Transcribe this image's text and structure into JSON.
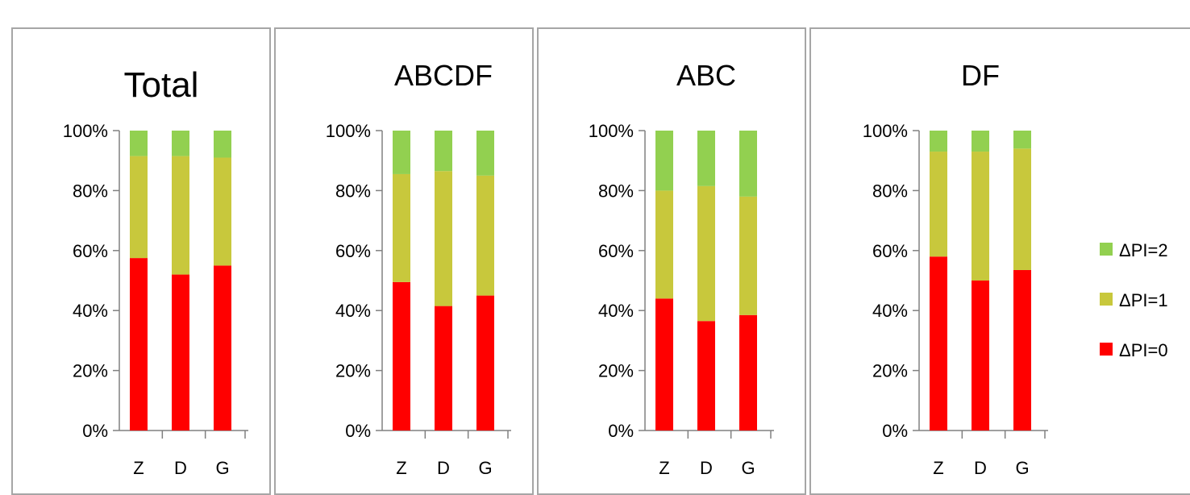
{
  "chart_data": [
    {
      "type": "bar",
      "stacked": true,
      "title": "Total",
      "categories": [
        "Z",
        "D",
        "G"
      ],
      "series": [
        {
          "name": "ΔPI=0",
          "values": [
            57.5,
            52,
            55
          ]
        },
        {
          "name": "ΔPI=1",
          "values": [
            34,
            39.5,
            36
          ]
        },
        {
          "name": "ΔPI=2",
          "values": [
            8.5,
            8.5,
            9
          ]
        }
      ],
      "yticks": [
        "0%",
        "20%",
        "40%",
        "60%",
        "80%",
        "100%"
      ],
      "ylim": [
        0,
        100
      ],
      "grid": false
    },
    {
      "type": "bar",
      "stacked": true,
      "title": "ABCDF",
      "categories": [
        "Z",
        "D",
        "G"
      ],
      "series": [
        {
          "name": "ΔPI=0",
          "values": [
            49.5,
            41.5,
            45
          ]
        },
        {
          "name": "ΔPI=1",
          "values": [
            36,
            45,
            40
          ]
        },
        {
          "name": "ΔPI=2",
          "values": [
            14.5,
            13.5,
            15
          ]
        }
      ],
      "yticks": [
        "0%",
        "20%",
        "40%",
        "60%",
        "80%",
        "100%"
      ],
      "ylim": [
        0,
        100
      ],
      "grid": false
    },
    {
      "type": "bar",
      "stacked": true,
      "title": "ABC",
      "categories": [
        "Z",
        "D",
        "G"
      ],
      "series": [
        {
          "name": "ΔPI=0",
          "values": [
            44,
            36.5,
            38.5
          ]
        },
        {
          "name": "ΔPI=1",
          "values": [
            36,
            45,
            39.5
          ]
        },
        {
          "name": "ΔPI=2",
          "values": [
            20,
            18.5,
            22
          ]
        }
      ],
      "yticks": [
        "0%",
        "20%",
        "40%",
        "60%",
        "80%",
        "100%"
      ],
      "ylim": [
        0,
        100
      ],
      "grid": false
    },
    {
      "type": "bar",
      "stacked": true,
      "title": "DF",
      "categories": [
        "Z",
        "D",
        "G"
      ],
      "series": [
        {
          "name": "ΔPI=0",
          "values": [
            58,
            50,
            53.5
          ]
        },
        {
          "name": "ΔPI=1",
          "values": [
            35,
            43,
            40.5
          ]
        },
        {
          "name": "ΔPI=2",
          "values": [
            7,
            7,
            6
          ]
        }
      ],
      "yticks": [
        "0%",
        "20%",
        "40%",
        "60%",
        "80%",
        "100%"
      ],
      "ylim": [
        0,
        100
      ],
      "grid": false
    }
  ],
  "legend": {
    "placement": "right",
    "items": [
      {
        "label": "ΔPI=2",
        "color": "#92d050"
      },
      {
        "label": "ΔPI=1",
        "color": "#c8c83c"
      },
      {
        "label": "ΔPI=0",
        "color": "#ff0000"
      }
    ]
  },
  "colors": {
    "ΔPI=0": "#ff0000",
    "ΔPI=1": "#c8c83c",
    "ΔPI=2": "#92d050"
  }
}
